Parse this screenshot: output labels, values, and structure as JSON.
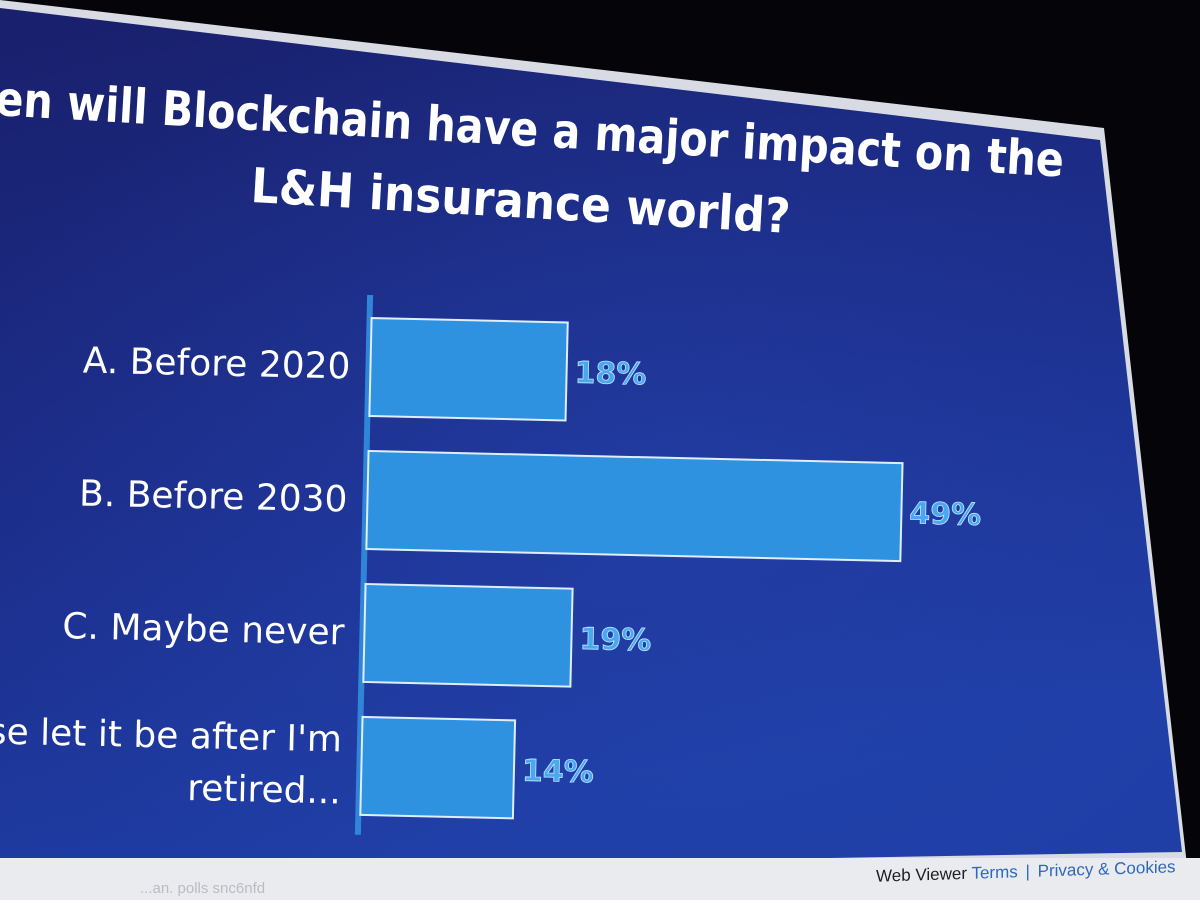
{
  "slide": {
    "title_line1": "en will Blockchain have a major impact on the",
    "title_line2": "L&H insurance world?"
  },
  "chart_data": {
    "type": "bar",
    "orientation": "horizontal",
    "title": "en will Blockchain have a major impact on the L&H insurance world?",
    "categories": [
      "A. Before 2020",
      "B. Before 2030",
      "C. Maybe never",
      "ease let it be after I'm retired..."
    ],
    "category_lines": [
      [
        "A. Before 2020"
      ],
      [
        "B. Before 2030"
      ],
      [
        "C. Maybe never"
      ],
      [
        "ease let it be after I'm",
        "retired..."
      ]
    ],
    "values": [
      18,
      49,
      19,
      14
    ],
    "value_labels": [
      "18%",
      "49%",
      "19%",
      "14%"
    ],
    "unit": "%",
    "xlim": [
      0,
      50
    ],
    "grid": false,
    "colors": {
      "bar": "#2f92e0",
      "bar_edge": "#dfeefc",
      "axis": "#2f86d8",
      "label_text": "#ffffff",
      "title_text": "#ffffff"
    }
  },
  "footer": {
    "web_viewer": "Web Viewer",
    "terms": "Terms",
    "separator": "|",
    "privacy": "Privacy & Cookies",
    "faint_text": "...an. polls snc6nfd"
  },
  "colors": {
    "screen_top": "#1a2170",
    "screen_bottom": "#1e3aa0",
    "room": "#050509",
    "footer_bg": "#e9ebef"
  }
}
